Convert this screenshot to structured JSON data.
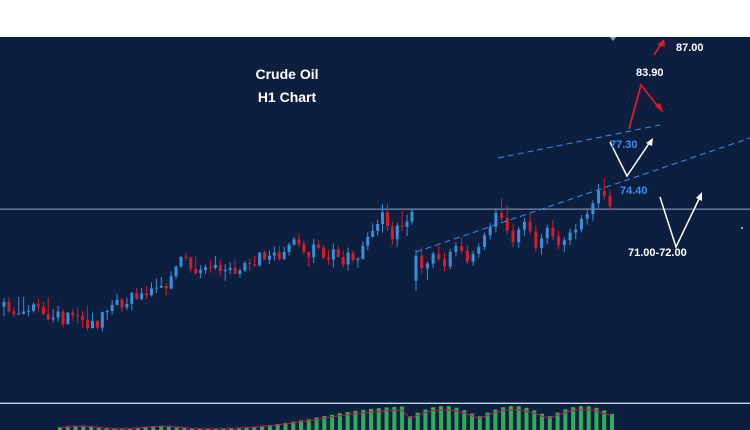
{
  "chart_data": {
    "type": "candlestick",
    "title_line1": "Crude Oil",
    "title_line2": "H1 Chart",
    "colors": {
      "background": "#0c1f3f",
      "bull": "#3a8fd9",
      "bear": "#d81b2a",
      "channel": "#3d8ef0",
      "histogram": "#2fae5a",
      "signal": "#c2185b",
      "arrow_red": "#d81b2a",
      "arrow_white": "#ffffff"
    },
    "resistance_level": 80.6,
    "annotations": [
      {
        "text": "87.00",
        "price": 87.0
      },
      {
        "text": "83.90",
        "price": 83.9
      },
      {
        "text": "77.30",
        "price": 77.3
      },
      {
        "text": "74.40",
        "price": 74.4
      },
      {
        "text": "71.00-72.00",
        "price": 71.5
      }
    ],
    "ohlc": [
      [
        70.53,
        71.4,
        69.55,
        71.03
      ],
      [
        71.03,
        71.52,
        69.87,
        70.09
      ],
      [
        70.09,
        70.53,
        69.49,
        69.76
      ],
      [
        69.76,
        71.57,
        69.73,
        69.82
      ],
      [
        69.82,
        71.55,
        69.75,
        70.06
      ],
      [
        70.06,
        70.72,
        69.55,
        70.13
      ],
      [
        70.13,
        70.97,
        69.94,
        70.77
      ],
      [
        70.77,
        71.34,
        70.04,
        70.59
      ],
      [
        70.59,
        71.07,
        69.66,
        69.79
      ],
      [
        69.79,
        71.52,
        69.16,
        69.24
      ],
      [
        69.24,
        70.32,
        68.94,
        69.43
      ],
      [
        69.43,
        70.61,
        69.01,
        70.04
      ],
      [
        70.04,
        70.25,
        68.4,
        68.75
      ],
      [
        68.75,
        70.01,
        68.7,
        69.93
      ],
      [
        69.93,
        70.28,
        69.11,
        69.67
      ],
      [
        69.67,
        70.49,
        68.81,
        69.58
      ],
      [
        69.58,
        70.06,
        68.38,
        69.14
      ],
      [
        69.14,
        70.6,
        68.09,
        68.34
      ],
      [
        68.34,
        69.93,
        68.3,
        69.08
      ],
      [
        69.08,
        69.17,
        68.23,
        68.38
      ],
      [
        68.38,
        70.05,
        67.97,
        69.98
      ],
      [
        69.98,
        70.27,
        69.19,
        70.1
      ],
      [
        70.1,
        71.22,
        69.71,
        70.73
      ],
      [
        70.73,
        71.86,
        70.71,
        71.27
      ],
      [
        71.27,
        71.44,
        69.98,
        70.46
      ],
      [
        70.46,
        71.49,
        70.22,
        70.83
      ],
      [
        70.83,
        72.0,
        70.17,
        71.98
      ],
      [
        71.98,
        72.52,
        71.28,
        71.34
      ],
      [
        71.34,
        72.47,
        71.18,
        71.92
      ],
      [
        71.92,
        72.67,
        71.32,
        71.72
      ],
      [
        71.72,
        73.05,
        71.6,
        72.44
      ],
      [
        72.44,
        73.44,
        71.97,
        72.51
      ],
      [
        72.51,
        73.61,
        72.46,
        72.68
      ],
      [
        72.68,
        73.01,
        71.71,
        72.42
      ],
      [
        72.42,
        74.19,
        72.36,
        73.68
      ],
      [
        73.68,
        74.77,
        73.4,
        74.7
      ],
      [
        74.7,
        75.71,
        74.57,
        75.7
      ],
      [
        75.7,
        76.1,
        75.23,
        75.61
      ],
      [
        75.61,
        75.72,
        74.05,
        74.46
      ],
      [
        74.46,
        75.74,
        73.82,
        74.0
      ],
      [
        74.0,
        74.83,
        73.48,
        74.35
      ],
      [
        74.35,
        74.87,
        73.9,
        74.61
      ],
      [
        74.61,
        75.37,
        74.04,
        74.53
      ],
      [
        74.53,
        75.79,
        74.36,
        74.86
      ],
      [
        74.86,
        75.42,
        73.73,
        74.21
      ],
      [
        74.21,
        74.96,
        73.23,
        74.35
      ],
      [
        74.35,
        75.13,
        73.92,
        74.56
      ],
      [
        74.56,
        75.41,
        73.92,
        73.94
      ],
      [
        73.94,
        74.5,
        73.53,
        74.27
      ],
      [
        74.27,
        75.24,
        74.11,
        75.05
      ],
      [
        75.05,
        75.47,
        74.22,
        74.95
      ],
      [
        74.95,
        75.76,
        74.69,
        74.79
      ],
      [
        74.79,
        76.15,
        74.66,
        76.14
      ],
      [
        76.14,
        76.32,
        75.38,
        75.39
      ],
      [
        75.39,
        76.34,
        74.92,
        75.82
      ],
      [
        75.82,
        76.73,
        75.29,
        76.13
      ],
      [
        76.13,
        76.81,
        75.33,
        75.45
      ],
      [
        75.45,
        76.74,
        75.4,
        76.19
      ],
      [
        76.19,
        77.18,
        75.81,
        76.94
      ],
      [
        76.94,
        77.73,
        76.87,
        77.49
      ],
      [
        77.49,
        78.07,
        76.68,
        76.99
      ],
      [
        76.99,
        77.35,
        75.89,
        76.18
      ],
      [
        76.18,
        76.27,
        74.64,
        75.64
      ],
      [
        75.64,
        77.55,
        75.04,
        76.95
      ],
      [
        76.95,
        77.37,
        76.43,
        76.64
      ],
      [
        76.64,
        76.86,
        75.43,
        75.6
      ],
      [
        75.6,
        76.36,
        74.87,
        75.41
      ],
      [
        75.41,
        77.08,
        74.55,
        76.46
      ],
      [
        76.46,
        76.85,
        75.62,
        75.67
      ],
      [
        75.67,
        76.34,
        74.59,
        74.91
      ],
      [
        74.91,
        76.64,
        74.26,
        76.13
      ],
      [
        76.13,
        76.34,
        75.1,
        75.36
      ],
      [
        75.36,
        75.67,
        74.58,
        75.48
      ],
      [
        75.48,
        77.27,
        75.4,
        76.83
      ],
      [
        76.83,
        78.24,
        76.39,
        77.75
      ],
      [
        77.75,
        79.13,
        77.66,
        78.36
      ],
      [
        78.36,
        79.54,
        77.92,
        79.07
      ],
      [
        79.07,
        81.14,
        78.19,
        80.27
      ],
      [
        80.27,
        81.18,
        78.32,
        78.83
      ],
      [
        78.83,
        79.33,
        76.95,
        77.51
      ],
      [
        77.51,
        79.17,
        76.76,
        78.91
      ],
      [
        78.91,
        80.45,
        78.37,
        78.77
      ],
      [
        78.77,
        80.06,
        77.84,
        79.33
      ],
      [
        79.33,
        80.59,
        79.01,
        80.32
      ]
    ],
    "histogram": [
      0.02,
      0.02,
      0.02,
      0.02,
      0.02,
      0.02,
      0.03,
      0.03,
      0.04,
      0.03,
      0.03,
      0.03,
      0.03,
      0.03,
      0.03,
      0.03,
      0.04,
      0.04,
      0.04,
      0.05,
      0.06,
      0.07,
      0.09,
      0.1,
      0.12,
      0.14,
      0.17,
      0.21,
      0.25,
      0.3,
      0.35,
      0.4,
      0.45,
      0.52,
      0.58,
      0.64,
      0.7,
      0.75,
      0.8,
      0.84,
      0.88,
      0.91,
      0.94,
      0.96,
      0.98,
      1.0,
      1.0,
      1.0,
      0.99,
      0.98,
      0.96,
      0.94,
      0.92,
      0.9,
      0.88,
      0.87,
      0.85,
      0.83,
      0.8,
      0.77,
      0.74,
      0.7,
      0.66,
      0.6,
      0.52,
      0.44,
      0.36,
      0.28,
      0.2,
      0.14,
      0.09,
      0.05
    ]
  }
}
